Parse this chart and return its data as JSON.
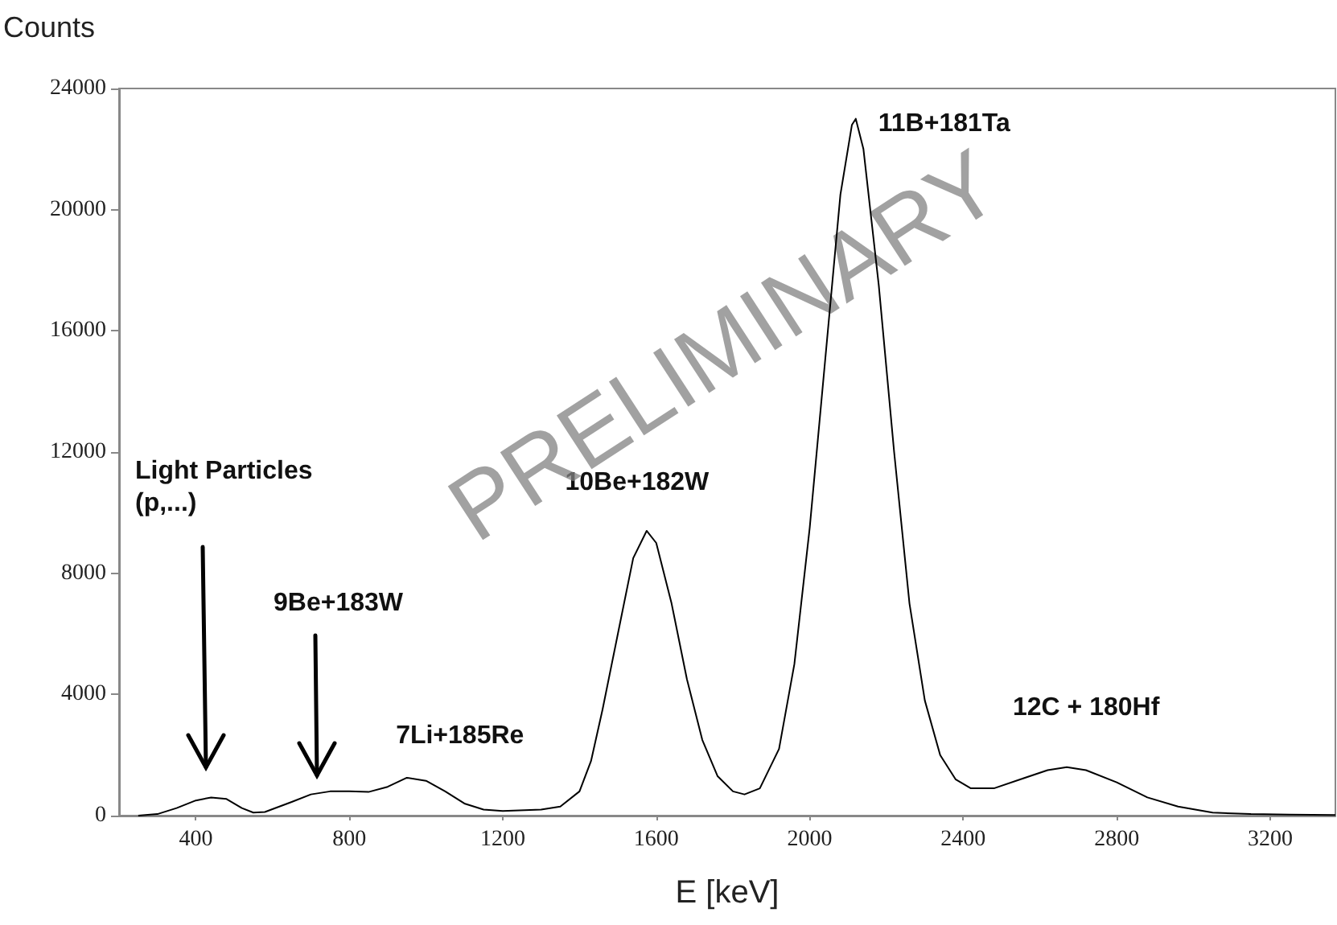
{
  "chart_data": {
    "type": "line",
    "ylabel": "Counts",
    "xlabel": "E [keV]",
    "xlim": [
      200,
      3370
    ],
    "xticks": [
      400,
      800,
      1200,
      1600,
      2000,
      2400,
      2800,
      3200
    ],
    "ylim": [
      0,
      24000
    ],
    "yticks": [
      0,
      4000,
      8000,
      12000,
      16000,
      20000,
      24000
    ],
    "grid": false,
    "marker": "none",
    "line_style": "solid",
    "x": [
      250,
      300,
      350,
      400,
      440,
      480,
      520,
      550,
      580,
      650,
      700,
      750,
      800,
      850,
      900,
      950,
      1000,
      1050,
      1100,
      1150,
      1200,
      1300,
      1350,
      1400,
      1430,
      1460,
      1500,
      1540,
      1575,
      1600,
      1640,
      1680,
      1720,
      1760,
      1800,
      1830,
      1870,
      1920,
      1960,
      2000,
      2040,
      2080,
      2110,
      2120,
      2140,
      2180,
      2220,
      2260,
      2300,
      2340,
      2380,
      2420,
      2480,
      2550,
      2620,
      2670,
      2720,
      2800,
      2880,
      2960,
      3050,
      3150,
      3250,
      3370
    ],
    "series": [
      {
        "color": "#000000",
        "values": [
          0,
          50,
          250,
          500,
          600,
          550,
          250,
          100,
          120,
          450,
          700,
          800,
          800,
          780,
          950,
          1250,
          1150,
          800,
          400,
          200,
          150,
          200,
          300,
          800,
          1800,
          3500,
          6000,
          8500,
          9400,
          9000,
          7000,
          4500,
          2500,
          1300,
          800,
          700,
          900,
          2200,
          5000,
          9500,
          15000,
          20500,
          22800,
          23000,
          22000,
          17500,
          12000,
          7000,
          3800,
          2000,
          1200,
          900,
          900,
          1200,
          1500,
          1600,
          1500,
          1100,
          600,
          300,
          100,
          50,
          30,
          20
        ]
      }
    ],
    "annotations": [
      "Light Particles\n(p,...)",
      "9Be+183W",
      {
        "text": "7Li+185Re",
        "x": 950,
        "y": 1250
      },
      {
        "text": "10Be+182W",
        "x": 1575,
        "y": 9400
      },
      {
        "text": "11B+181Ta",
        "x": 2120,
        "y": 23000
      },
      {
        "text": "12C + 180Hf",
        "x": 2670,
        "y": 1600
      },
      "PRELIMINARY"
    ]
  }
}
